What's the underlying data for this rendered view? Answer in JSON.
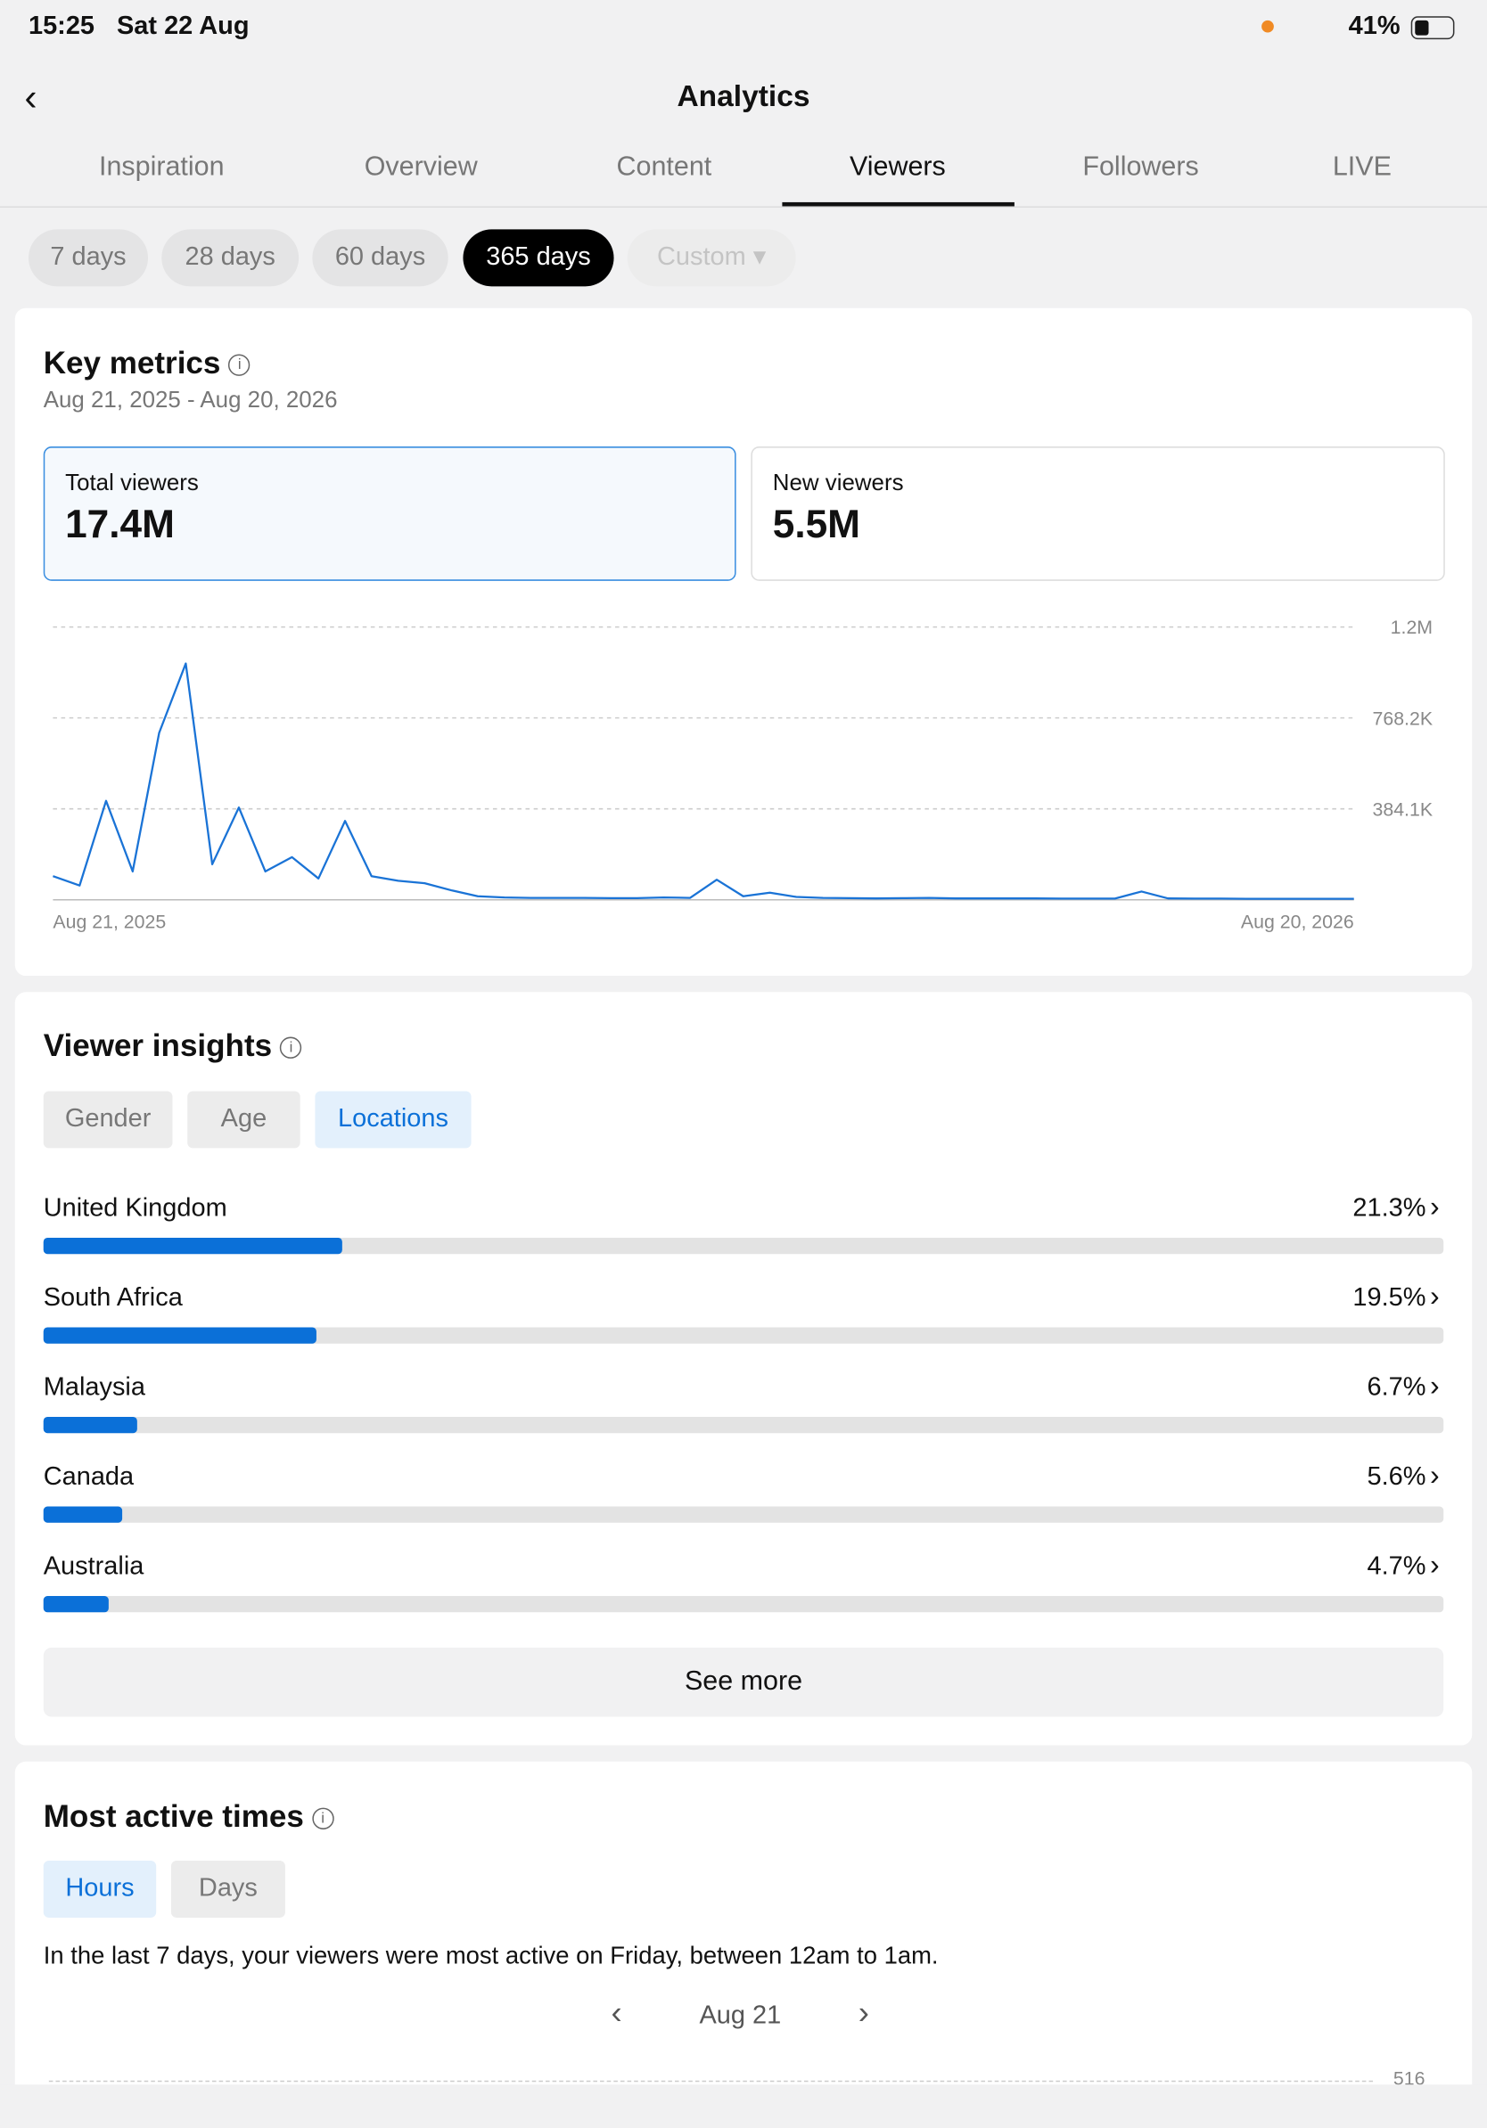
{
  "status_bar": {
    "time": "15:25",
    "date": "Sat 22 Aug",
    "battery": "41%"
  },
  "header": {
    "title": "Analytics"
  },
  "tabs": [
    "Inspiration",
    "Overview",
    "Content",
    "Viewers",
    "Followers",
    "LIVE"
  ],
  "ranges": [
    "7 days",
    "28 days",
    "60 days",
    "365 days",
    "Custom"
  ],
  "key_metrics": {
    "title": "Key metrics",
    "period": "Aug 21, 2025 - Aug 20, 2026",
    "cards": [
      {
        "label": "Total viewers",
        "value": "17.4M"
      },
      {
        "label": "New viewers",
        "value": "5.5M"
      }
    ]
  },
  "viewer_insights": {
    "title": "Viewer insights",
    "filters": [
      "Gender",
      "Age",
      "Locations"
    ],
    "see_more": "See more"
  },
  "active_times": {
    "title": "Most active times",
    "filters": [
      "Hours",
      "Days"
    ],
    "summary": "In the last 7 days, your viewers were most active on Friday, between 12am to 1am.",
    "day": "Aug 21",
    "axis_label": "516"
  },
  "chart_data": [
    {
      "type": "line",
      "color": "#1a73d6",
      "grid": true,
      "categories": [
        "Aug 21, 2025",
        null,
        null,
        null,
        null,
        null,
        null,
        null,
        null,
        null,
        null,
        null,
        null,
        null,
        null,
        null,
        null,
        null,
        null,
        null,
        null,
        null,
        null,
        null,
        null,
        null,
        null,
        null,
        null,
        null,
        null,
        null,
        null,
        null,
        null,
        null,
        null,
        null,
        null,
        null,
        null,
        null,
        null,
        null,
        null,
        null,
        null,
        null,
        null,
        "Aug 20, 2026"
      ],
      "values": [
        100000,
        60000,
        418000,
        120000,
        705000,
        998000,
        150000,
        390000,
        120000,
        180000,
        90000,
        333000,
        100000,
        80000,
        70000,
        40000,
        15000,
        10000,
        8000,
        8000,
        8000,
        7000,
        7000,
        10000,
        8000,
        85000,
        15000,
        30000,
        12000,
        8000,
        7000,
        6000,
        7000,
        8000,
        6000,
        6000,
        6000,
        6000,
        5000,
        5000,
        5000,
        35000,
        6000,
        5000,
        5000,
        4000,
        4000,
        4000,
        4000,
        4000
      ],
      "ylim": [
        0,
        1152300
      ],
      "yticks": [
        {
          "value": 384100,
          "label": "384.1K"
        },
        {
          "value": 768200,
          "label": "768.2K"
        },
        {
          "value": 1152300,
          "label": "1.2M"
        }
      ]
    },
    {
      "type": "bar",
      "orientation": "horizontal",
      "color": "#0b70d8",
      "track_color": "#e3e3e3",
      "categories": [
        "United Kingdom",
        "South Africa",
        "Malaysia",
        "Canada",
        "Australia"
      ],
      "values": [
        21.3,
        19.5,
        6.7,
        5.6,
        4.7
      ],
      "value_labels": [
        "21.3%",
        "19.5%",
        "6.7%",
        "5.6%",
        "4.7%"
      ],
      "xlim": [
        0,
        100
      ]
    }
  ]
}
